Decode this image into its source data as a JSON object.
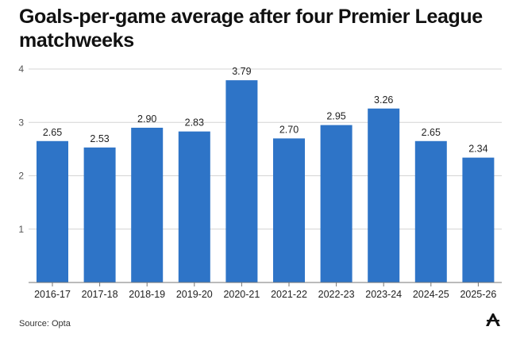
{
  "title": "Goals-per-game average after four Premier League matchweeks",
  "source": "Source: Opta",
  "colors": {
    "bar": "#2e74c7",
    "grid": "#d4d4d4",
    "axis": "#777777",
    "text": "#222222"
  },
  "chart_data": {
    "type": "bar",
    "title": "Goals-per-game average after four Premier League matchweeks",
    "categories": [
      "2016-17",
      "2017-18",
      "2018-19",
      "2019-20",
      "2020-21",
      "2021-22",
      "2022-23",
      "2023-24",
      "2024-25",
      "2025-26"
    ],
    "values": [
      2.65,
      2.53,
      2.9,
      2.83,
      3.79,
      2.7,
      2.95,
      3.26,
      2.65,
      2.34
    ],
    "value_labels": [
      "2.65",
      "2.53",
      "2.90",
      "2.83",
      "3.79",
      "2.70",
      "2.95",
      "3.26",
      "2.65",
      "2.34"
    ],
    "xlabel": "",
    "ylabel": "",
    "ylim": [
      0,
      4
    ],
    "yticks": [
      "1",
      "2",
      "3",
      "4"
    ],
    "yticks_values": [
      1,
      2,
      3,
      4
    ],
    "grid": true
  }
}
